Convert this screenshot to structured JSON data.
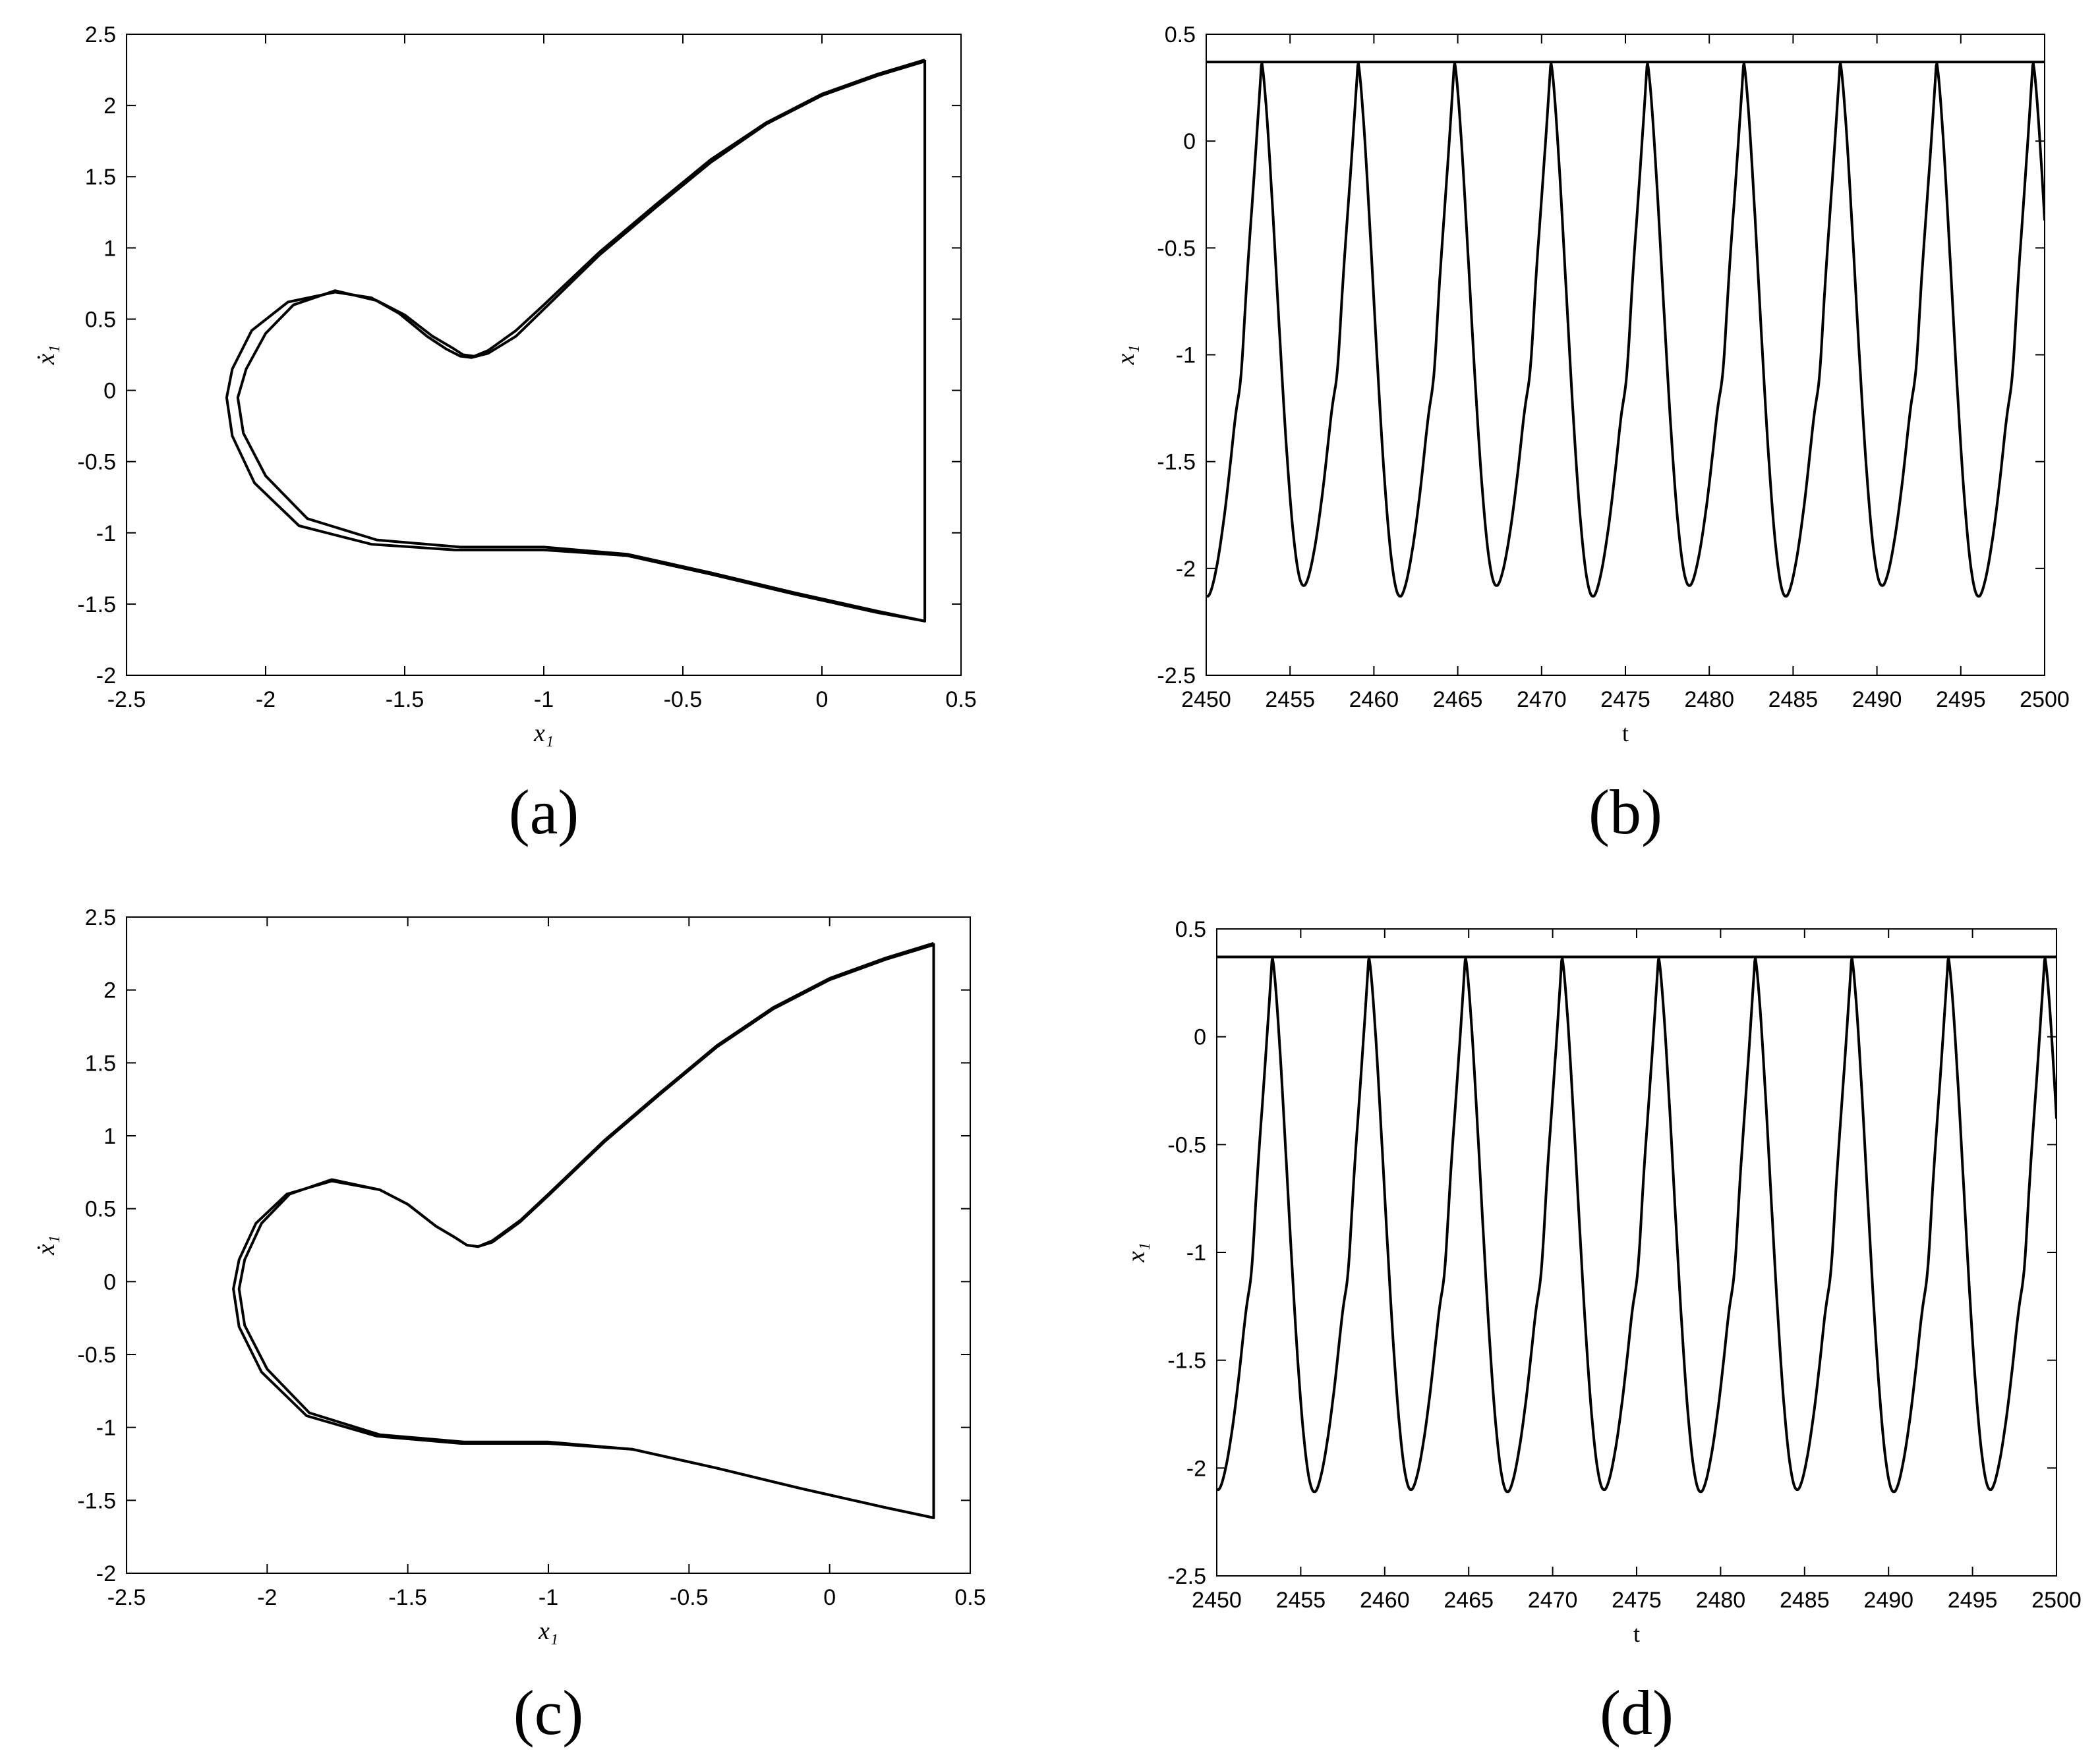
{
  "chart_data": [
    {
      "panel": "a",
      "type": "line",
      "caption": "(a)",
      "xlabel": "x₁",
      "ylabel": "ẋ₁",
      "xlim": [
        -2.5,
        0.5
      ],
      "ylim": [
        -2,
        2.5
      ],
      "xticks": [
        -2.5,
        -2,
        -1.5,
        -1,
        -0.5,
        0,
        0.5
      ],
      "xtick_labels": [
        "-2.5",
        "-2",
        "-1.5",
        "-1",
        "-0.5",
        "0",
        "0.5"
      ],
      "yticks": [
        -2,
        -1.5,
        -1,
        -0.5,
        0,
        0.5,
        1,
        1.5,
        2,
        2.5
      ],
      "ytick_labels": [
        "-2",
        "-1.5",
        "-1",
        "-0.5",
        "0",
        "0.5",
        "1",
        "1.5",
        "2",
        "2.5"
      ],
      "grid": false,
      "line_color": "#000000",
      "series": [
        {
          "x": [
            0.37,
            0.2,
            0.0,
            -0.2,
            -0.4,
            -0.6,
            -0.8,
            -1.0,
            -1.1,
            -1.2,
            -1.25,
            -1.29,
            -1.33,
            -1.4,
            -1.5,
            -1.6,
            -1.75,
            -1.9,
            -2.0,
            -2.07,
            -2.1,
            -2.08,
            -2.0,
            -1.85,
            -1.6,
            -1.3,
            -1.0,
            -0.7,
            -0.4,
            -0.1,
            0.2,
            0.37,
            0.37
          ],
          "y": [
            2.32,
            2.22,
            2.08,
            1.88,
            1.62,
            1.3,
            0.97,
            0.6,
            0.42,
            0.28,
            0.24,
            0.25,
            0.3,
            0.38,
            0.53,
            0.63,
            0.7,
            0.6,
            0.4,
            0.15,
            -0.05,
            -0.3,
            -0.6,
            -0.9,
            -1.05,
            -1.1,
            -1.1,
            -1.15,
            -1.28,
            -1.42,
            -1.55,
            -1.62,
            2.32
          ]
        },
        {
          "x": [
            0.37,
            0.2,
            0.0,
            -0.2,
            -0.4,
            -0.6,
            -0.8,
            -1.0,
            -1.1,
            -1.2,
            -1.26,
            -1.3,
            -1.35,
            -1.42,
            -1.52,
            -1.62,
            -1.75,
            -1.92,
            -2.05,
            -2.12,
            -2.14,
            -2.12,
            -2.04,
            -1.88,
            -1.62,
            -1.32,
            -1.0,
            -0.7,
            -0.4,
            -0.1,
            0.2,
            0.37
          ],
          "y": [
            2.31,
            2.21,
            2.07,
            1.87,
            1.6,
            1.28,
            0.95,
            0.57,
            0.38,
            0.26,
            0.23,
            0.24,
            0.29,
            0.38,
            0.54,
            0.65,
            0.69,
            0.62,
            0.42,
            0.15,
            -0.05,
            -0.32,
            -0.65,
            -0.95,
            -1.08,
            -1.12,
            -1.12,
            -1.16,
            -1.29,
            -1.43,
            -1.56,
            -1.62
          ]
        }
      ]
    },
    {
      "panel": "b",
      "type": "line",
      "caption": "(b)",
      "xlabel": "t",
      "ylabel": "x₁",
      "xlim": [
        2450,
        2500
      ],
      "ylim": [
        -2.5,
        0.5
      ],
      "xticks": [
        2450,
        2455,
        2460,
        2465,
        2470,
        2475,
        2480,
        2485,
        2490,
        2495,
        2500
      ],
      "xtick_labels": [
        "2450",
        "2455",
        "2460",
        "2465",
        "2470",
        "2475",
        "2480",
        "2485",
        "2490",
        "2495",
        "2500"
      ],
      "yticks": [
        -2.5,
        -2,
        -1.5,
        -1,
        -0.5,
        0,
        0.5
      ],
      "ytick_labels": [
        "-2.5",
        "-2",
        "-1.5",
        "-1",
        "-0.5",
        "0",
        "0.5"
      ],
      "grid": false,
      "line_color": "#000000",
      "threshold_y": 0.37,
      "period": 5.75,
      "first_peak_t": 2453.3,
      "minima_alternating": [
        -2.08,
        -2.13
      ],
      "peak_value": 0.37
    },
    {
      "panel": "c",
      "type": "line",
      "caption": "(c)",
      "xlabel": "x₁",
      "ylabel": "ẋ₁",
      "xlim": [
        -2.5,
        0.5
      ],
      "ylim": [
        -2,
        2.5
      ],
      "xticks": [
        -2.5,
        -2,
        -1.5,
        -1,
        -0.5,
        0,
        0.5
      ],
      "xtick_labels": [
        "-2.5",
        "-2",
        "-1.5",
        "-1",
        "-0.5",
        "0",
        "0.5"
      ],
      "yticks": [
        -2,
        -1.5,
        -1,
        -0.5,
        0,
        0.5,
        1,
        1.5,
        2,
        2.5
      ],
      "ytick_labels": [
        "-2",
        "-1.5",
        "-1",
        "-0.5",
        "0",
        "0.5",
        "1",
        "1.5",
        "2",
        "2.5"
      ],
      "grid": false,
      "line_color": "#000000",
      "series": [
        {
          "x": [
            0.37,
            0.2,
            0.0,
            -0.2,
            -0.4,
            -0.6,
            -0.8,
            -1.0,
            -1.1,
            -1.2,
            -1.25,
            -1.29,
            -1.33,
            -1.4,
            -1.5,
            -1.6,
            -1.77,
            -1.92,
            -2.02,
            -2.08,
            -2.1,
            -2.08,
            -2.0,
            -1.85,
            -1.6,
            -1.3,
            -1.0,
            -0.7,
            -0.4,
            -0.1,
            0.2,
            0.37,
            0.37
          ],
          "y": [
            2.32,
            2.22,
            2.08,
            1.88,
            1.62,
            1.3,
            0.97,
            0.6,
            0.42,
            0.28,
            0.24,
            0.25,
            0.3,
            0.38,
            0.53,
            0.63,
            0.7,
            0.6,
            0.4,
            0.15,
            -0.05,
            -0.3,
            -0.6,
            -0.9,
            -1.05,
            -1.1,
            -1.1,
            -1.15,
            -1.28,
            -1.42,
            -1.55,
            -1.62,
            2.32
          ]
        },
        {
          "x": [
            0.37,
            0.2,
            0.0,
            -0.2,
            -0.4,
            -0.6,
            -0.8,
            -1.0,
            -1.1,
            -1.2,
            -1.25,
            -1.29,
            -1.33,
            -1.4,
            -1.5,
            -1.6,
            -1.77,
            -1.93,
            -2.04,
            -2.1,
            -2.12,
            -2.1,
            -2.02,
            -1.86,
            -1.61,
            -1.31,
            -1.0,
            -0.7,
            -0.4,
            -0.1,
            0.2,
            0.37
          ],
          "y": [
            2.31,
            2.21,
            2.07,
            1.87,
            1.61,
            1.29,
            0.96,
            0.59,
            0.41,
            0.27,
            0.24,
            0.25,
            0.3,
            0.38,
            0.53,
            0.63,
            0.69,
            0.6,
            0.4,
            0.15,
            -0.05,
            -0.31,
            -0.62,
            -0.92,
            -1.06,
            -1.11,
            -1.11,
            -1.15,
            -1.28,
            -1.42,
            -1.55,
            -1.62
          ]
        }
      ]
    },
    {
      "panel": "d",
      "type": "line",
      "caption": "(d)",
      "xlabel": "t",
      "ylabel": "x₁",
      "xlim": [
        2450,
        2500
      ],
      "ylim": [
        -2.5,
        0.5
      ],
      "xticks": [
        2450,
        2455,
        2460,
        2465,
        2470,
        2475,
        2480,
        2485,
        2490,
        2495,
        2500
      ],
      "xtick_labels": [
        "2450",
        "2455",
        "2460",
        "2465",
        "2470",
        "2475",
        "2480",
        "2485",
        "2490",
        "2495",
        "2500"
      ],
      "yticks": [
        -2.5,
        -2,
        -1.5,
        -1,
        -0.5,
        0,
        0.5
      ],
      "ytick_labels": [
        "-2.5",
        "-2",
        "-1.5",
        "-1",
        "-0.5",
        "0",
        "0.5"
      ],
      "grid": false,
      "line_color": "#000000",
      "threshold_y": 0.37,
      "period": 5.75,
      "first_peak_t": 2453.3,
      "minima_alternating": [
        -2.11,
        -2.1
      ],
      "peak_value": 0.37
    }
  ]
}
